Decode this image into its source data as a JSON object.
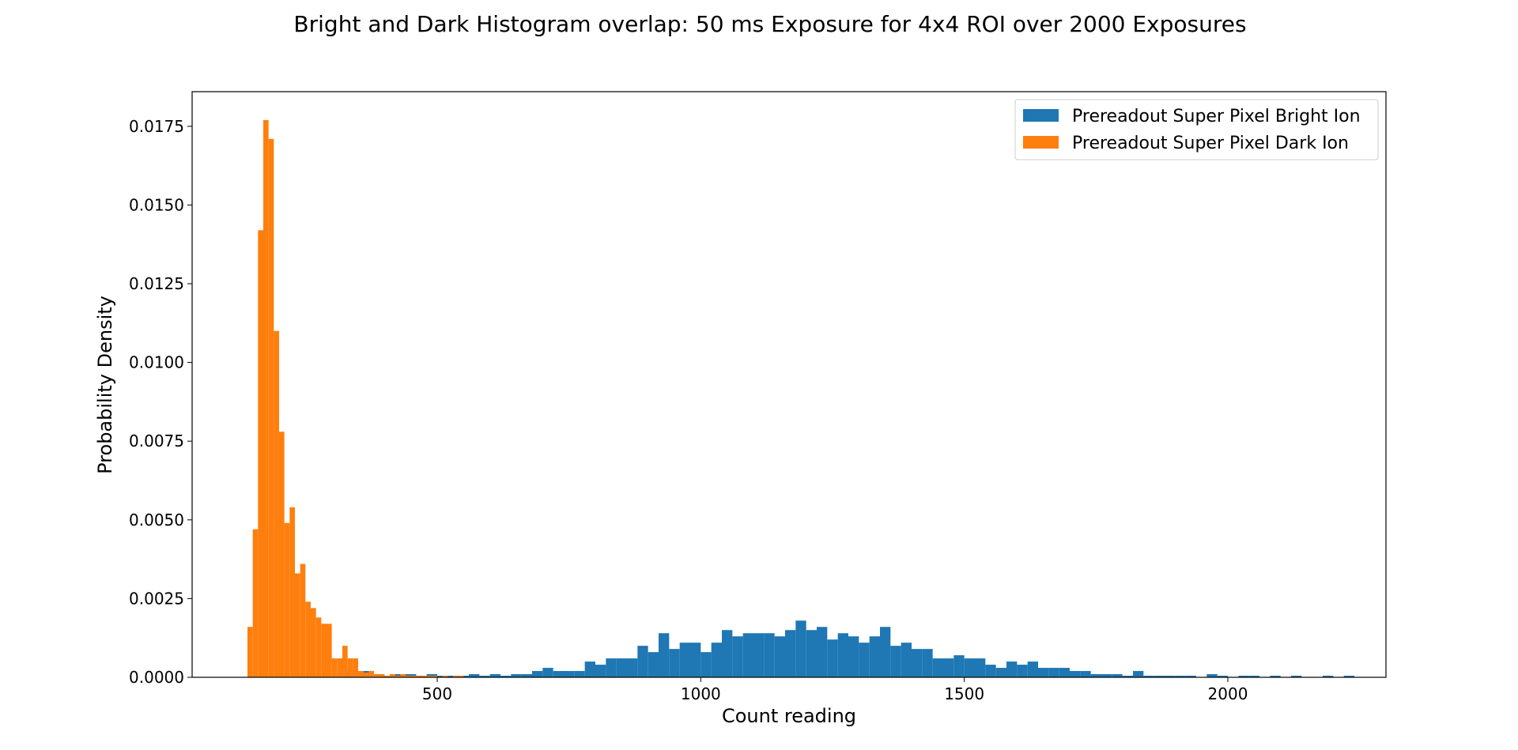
{
  "chart_data": {
    "type": "bar",
    "title": "Bright and Dark Histogram overlap: 50 ms Exposure for 4x4 ROI over 2000 Exposures",
    "xlabel": "Count reading",
    "ylabel": "Probability Density",
    "xlim": [
      35,
      2300
    ],
    "ylim": [
      0,
      0.0186
    ],
    "x_ticks": [
      500,
      1000,
      1500,
      2000
    ],
    "y_ticks": [
      0,
      0.0025,
      0.005,
      0.0075,
      0.01,
      0.0125,
      0.015,
      0.0175
    ],
    "y_tick_labels": [
      "0.0000",
      "0.0025",
      "0.0050",
      "0.0075",
      "0.0100",
      "0.0125",
      "0.0150",
      "0.0175"
    ],
    "grid": false,
    "legend_position": "top-right",
    "colors": {
      "bright": "#1f77b4",
      "dark": "#ff7f0e"
    },
    "series": [
      {
        "name": "Prereadout Super Pixel Bright Ion",
        "bin_start": 320,
        "bin_width": 20,
        "values": [
          0.0002,
          0.0001,
          0.0002,
          0.0001,
          5e-05,
          0.0001,
          0.0001,
          5e-05,
          0.0001,
          5e-05,
          5e-05,
          5e-05,
          0.0001,
          5e-05,
          0.0001,
          5e-05,
          0.0001,
          0.0001,
          0.0002,
          0.0003,
          0.0002,
          0.0002,
          0.0002,
          0.0005,
          0.0004,
          0.0006,
          0.0006,
          0.0006,
          0.001,
          0.0008,
          0.0014,
          0.0009,
          0.0011,
          0.0011,
          0.0008,
          0.0011,
          0.0015,
          0.0013,
          0.0014,
          0.0014,
          0.0014,
          0.0013,
          0.0015,
          0.0018,
          0.0015,
          0.0016,
          0.0012,
          0.0014,
          0.0013,
          0.0011,
          0.0013,
          0.0016,
          0.001,
          0.0011,
          0.0009,
          0.0009,
          0.0006,
          0.0006,
          0.0007,
          0.0006,
          0.0006,
          0.0004,
          0.0003,
          0.0005,
          0.0004,
          0.0005,
          0.0003,
          0.0003,
          0.0003,
          0.0002,
          0.0002,
          0.0001,
          0.0001,
          0.0001,
          5e-05,
          0.0002,
          5e-05,
          5e-05,
          5e-05,
          5e-05,
          5e-05,
          0,
          0.0001,
          5e-05,
          0,
          5e-05,
          5e-05,
          0,
          5e-05,
          0,
          5e-05,
          0,
          0,
          5e-05,
          0,
          5e-05
        ]
      },
      {
        "name": "Prereadout Super Pixel Dark Ion",
        "bin_start": 140,
        "bin_width": 10,
        "values": [
          0.0016,
          0.0047,
          0.0142,
          0.0177,
          0.0171,
          0.011,
          0.0078,
          0.0049,
          0.0054,
          0.0033,
          0.0036,
          0.0024,
          0.0022,
          0.0019,
          0.0017,
          0.0017,
          0.0006,
          0.0006,
          0.001,
          0.0006,
          0.0006,
          0.0002,
          0.00015,
          0.0002,
          0.0001,
          0.0001,
          5e-05,
          0.0001,
          5e-05,
          0.0001,
          5e-05,
          5e-05,
          5e-05,
          5e-05,
          5e-05,
          5e-05,
          0,
          5e-05,
          0,
          5e-05,
          5e-05
        ]
      }
    ]
  }
}
